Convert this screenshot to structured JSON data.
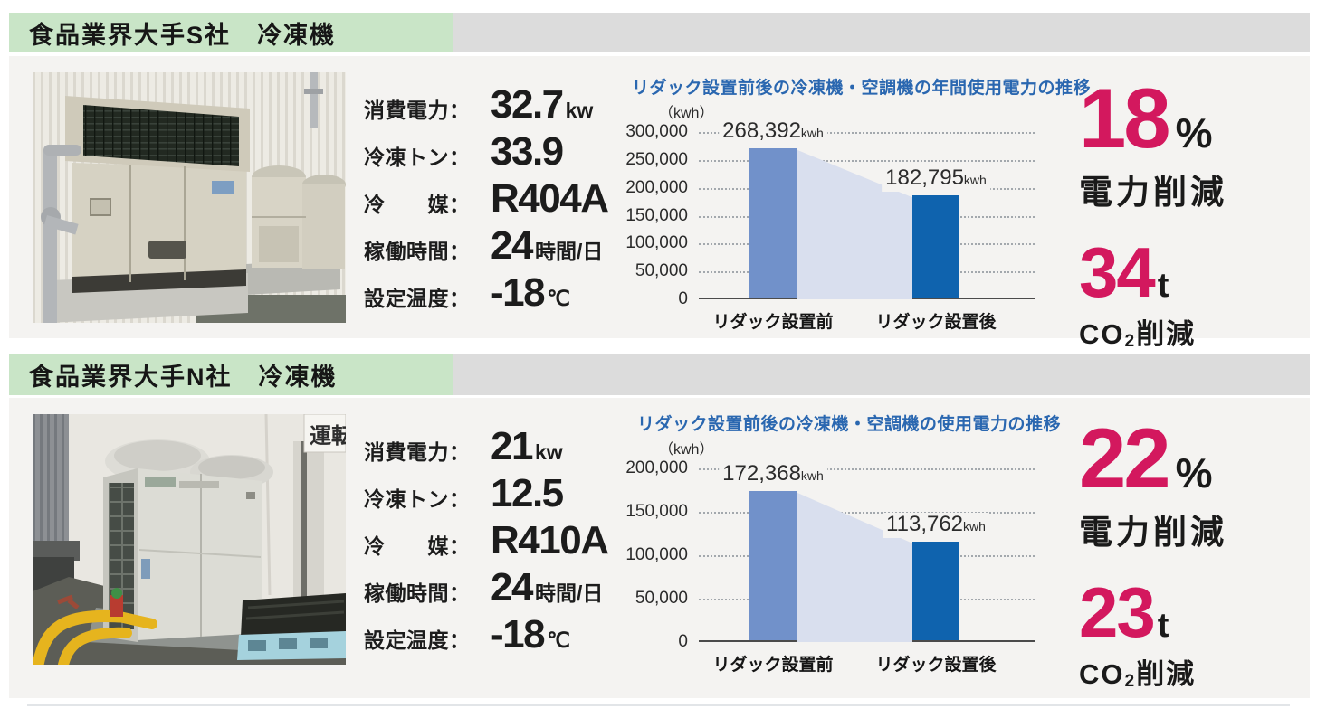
{
  "colors": {
    "header_green": "#c9e5c7",
    "header_gray_extension": "#dcdcdc",
    "panel_background": "#f4f3f1",
    "chart_title_blue": "#2a67b0",
    "bar_before_blue": "#7191ca",
    "bar_after_blue": "#0f63ae",
    "bar_link_light_blue": "#d9dfee",
    "accent_magenta": "#d3185e"
  },
  "sections": [
    {
      "header": "食品業界大手S社　冷凍機",
      "specs": [
        {
          "label": "消費電力：",
          "value": "32.7",
          "unit": "kw"
        },
        {
          "label": "冷凍トン：",
          "value": "33.9",
          "unit": ""
        },
        {
          "label": "冷　　媒：",
          "value": "R404A",
          "unit": ""
        },
        {
          "label": "稼働時間：",
          "value": "24",
          "unit": "時間/日"
        },
        {
          "label": "設定温度：",
          "value": "-18",
          "unit": "℃"
        }
      ],
      "stats": {
        "percent_value": "18",
        "percent_unit": "%",
        "percent_caption": "電力削減",
        "co2_value": "34",
        "co2_unit": "t",
        "co2_caption_prefix": "CO",
        "co2_caption_sub": "2",
        "co2_caption_suffix": "削減"
      }
    },
    {
      "header": "食品業界大手N社　冷凍機",
      "photo_sign_text": "運転",
      "specs": [
        {
          "label": "消費電力：",
          "value": "21",
          "unit": "kw"
        },
        {
          "label": "冷凍トン：",
          "value": "12.5",
          "unit": ""
        },
        {
          "label": "冷　　媒：",
          "value": "R410A",
          "unit": ""
        },
        {
          "label": "稼働時間：",
          "value": "24",
          "unit": "時間/日"
        },
        {
          "label": "設定温度：",
          "value": "-18",
          "unit": "℃"
        }
      ],
      "stats": {
        "percent_value": "22",
        "percent_unit": "%",
        "percent_caption": "電力削減",
        "co2_value": "23",
        "co2_unit": "t",
        "co2_caption_prefix": "CO",
        "co2_caption_sub": "2",
        "co2_caption_suffix": "削減"
      }
    }
  ],
  "chart_data": [
    {
      "type": "bar",
      "title": "リダック設置前後の冷凍機・空調機の年間使用電力の推移",
      "unit_label": "（kwh）",
      "categories": [
        "リダック設置前",
        "リダック設置後"
      ],
      "values": [
        268392,
        182795
      ],
      "bar_labels": [
        {
          "num": "268,392",
          "unit": "kwh"
        },
        {
          "num": "182,795",
          "unit": "kwh"
        }
      ],
      "ymax": 300000,
      "ylim": [
        0,
        300000
      ],
      "yticks": [
        "300,000",
        "250,000",
        "200,000",
        "150,000",
        "100,000",
        "50,000",
        "0"
      ],
      "grid": "dotted-horizontal",
      "legend": "none",
      "bar_colors": [
        "#7191ca",
        "#0f63ae"
      ],
      "link_fill": "#d9dfee"
    },
    {
      "type": "bar",
      "title": "リダック設置前後の冷凍機・空調機の使用電力の推移",
      "unit_label": "（kwh）",
      "categories": [
        "リダック設置前",
        "リダック設置後"
      ],
      "values": [
        172368,
        113762
      ],
      "bar_labels": [
        {
          "num": "172,368",
          "unit": "kwh"
        },
        {
          "num": "113,762",
          "unit": "kwh"
        }
      ],
      "ymax": 200000,
      "ylim": [
        0,
        200000
      ],
      "yticks": [
        "200,000",
        "150,000",
        "100,000",
        "50,000",
        "0"
      ],
      "grid": "dotted-horizontal",
      "legend": "none",
      "bar_colors": [
        "#7191ca",
        "#0f63ae"
      ],
      "link_fill": "#d9dfee"
    }
  ]
}
